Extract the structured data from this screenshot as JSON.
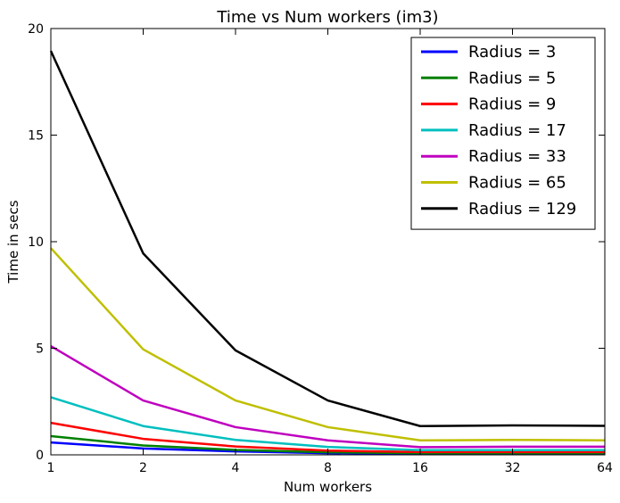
{
  "chart_data": {
    "type": "line",
    "title": "Time vs Num workers (im3)",
    "xlabel": "Num workers",
    "ylabel": "Time in secs",
    "x_scale": "log2",
    "categories": [
      "1",
      "2",
      "4",
      "8",
      "16",
      "32",
      "64"
    ],
    "x": [
      1,
      2,
      4,
      8,
      16,
      32,
      64
    ],
    "ylim": [
      0,
      20
    ],
    "yticks": [
      "0",
      "5",
      "10",
      "15",
      "20"
    ],
    "grid": false,
    "legend_position": "top-right",
    "series": [
      {
        "name": "Radius = 3",
        "color": "#0000ff",
        "values": [
          0.58,
          0.3,
          0.16,
          0.08,
          0.05,
          0.05,
          0.05
        ]
      },
      {
        "name": "Radius = 5",
        "color": "#008000",
        "values": [
          0.88,
          0.44,
          0.23,
          0.12,
          0.08,
          0.08,
          0.08
        ]
      },
      {
        "name": "Radius = 9",
        "color": "#ff0000",
        "values": [
          1.5,
          0.75,
          0.39,
          0.2,
          0.13,
          0.13,
          0.13
        ]
      },
      {
        "name": "Radius = 17",
        "color": "#00bfbf",
        "values": [
          2.7,
          1.35,
          0.7,
          0.37,
          0.22,
          0.22,
          0.22
        ]
      },
      {
        "name": "Radius = 33",
        "color": "#bf00bf",
        "values": [
          5.1,
          2.55,
          1.3,
          0.68,
          0.36,
          0.38,
          0.38
        ]
      },
      {
        "name": "Radius = 65",
        "color": "#bfbf00",
        "values": [
          9.7,
          4.95,
          2.55,
          1.3,
          0.68,
          0.7,
          0.68
        ]
      },
      {
        "name": "Radius = 129",
        "color": "#000000",
        "values": [
          18.95,
          9.45,
          4.9,
          2.55,
          1.35,
          1.38,
          1.36
        ]
      }
    ]
  }
}
